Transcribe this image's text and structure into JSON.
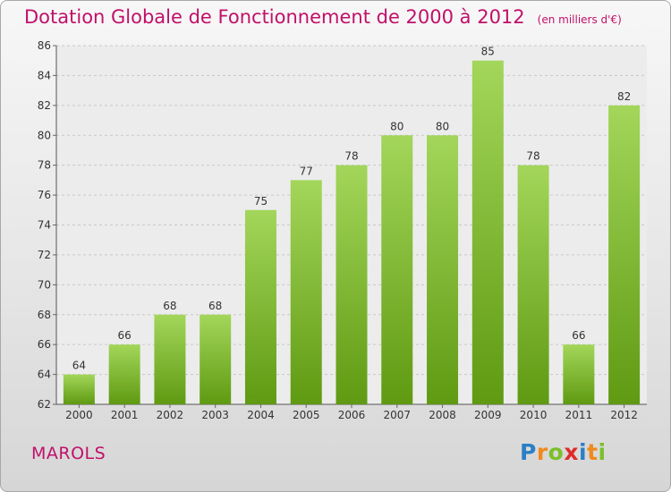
{
  "chart_data": {
    "type": "bar",
    "title": "Dotation Globale de Fonctionnement de 2000 à 2012",
    "subtitle": "(en milliers d'€)",
    "categories": [
      "2000",
      "2001",
      "2002",
      "2003",
      "2004",
      "2005",
      "2006",
      "2007",
      "2008",
      "2009",
      "2010",
      "2011",
      "2012"
    ],
    "values": [
      64,
      66,
      68,
      68,
      75,
      77,
      78,
      80,
      80,
      85,
      78,
      66,
      82
    ],
    "xlabel": "",
    "ylabel": "",
    "ylim": [
      62,
      86
    ],
    "yticks": [
      62,
      64,
      66,
      68,
      70,
      72,
      74,
      76,
      78,
      80,
      82,
      84,
      86
    ],
    "grid": true,
    "legend": "none",
    "colors": {
      "bar_light": "#a3d65a",
      "bar_dark": "#5f9a12",
      "title": "#c0106a"
    }
  },
  "footer": {
    "commune": "MAROLS",
    "logo_letters": [
      {
        "char": "P",
        "color": "#2b7fc4"
      },
      {
        "char": "r",
        "color": "#f08a1c"
      },
      {
        "char": "o",
        "color": "#7cbf2b"
      },
      {
        "char": "x",
        "color": "#e02a2a"
      },
      {
        "char": "i",
        "color": "#2b7fc4"
      },
      {
        "char": "t",
        "color": "#f08a1c"
      },
      {
        "char": "i",
        "color": "#7cbf2b"
      }
    ]
  }
}
